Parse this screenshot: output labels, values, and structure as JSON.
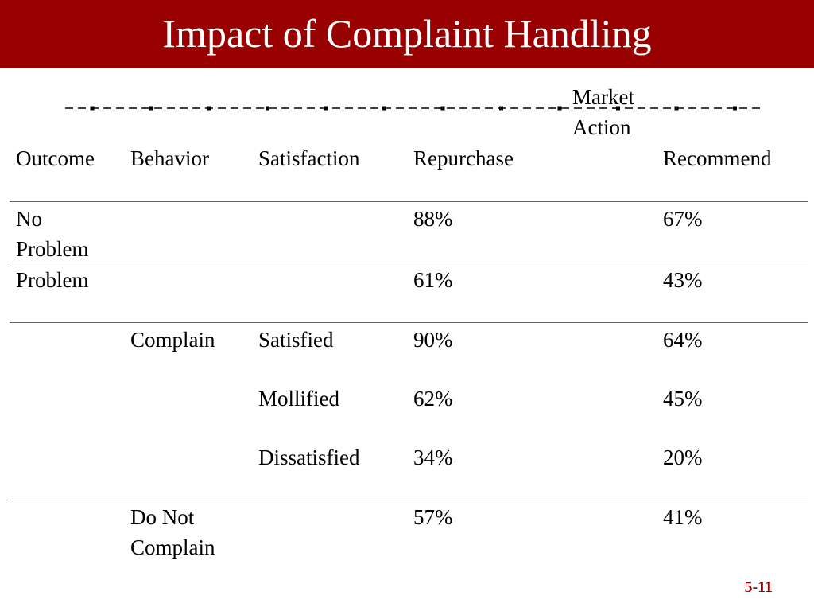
{
  "slide": {
    "title": "Impact of Complaint Handling",
    "slide_number": "5-11",
    "accent_color": "#990000"
  },
  "table": {
    "headers": {
      "outcome": "Outcome",
      "behavior": "Behavior",
      "satisfaction": "Satisfaction",
      "market_action_line1": "Market",
      "market_action_line2": "Action",
      "repurchase": "Repurchase",
      "recommend": "Recommend"
    },
    "rows": [
      {
        "outcome": [
          "No",
          "Problem"
        ],
        "behavior": [],
        "satisfaction": "",
        "repurchase": "88%",
        "recommend": "67%"
      },
      {
        "outcome": [
          "Problem"
        ],
        "behavior": [],
        "satisfaction": "",
        "repurchase": "61%",
        "recommend": "43%"
      },
      {
        "outcome": [],
        "behavior": [
          "Complain"
        ],
        "satisfaction": "Satisfied",
        "repurchase": "90%",
        "recommend": "64%"
      },
      {
        "outcome": [],
        "behavior": [],
        "satisfaction": "Mollified",
        "repurchase": "62%",
        "recommend": "45%"
      },
      {
        "outcome": [],
        "behavior": [],
        "satisfaction": "Dissatisfied",
        "repurchase": "34%",
        "recommend": "20%"
      },
      {
        "outcome": [],
        "behavior": [
          "Do Not",
          "Complain"
        ],
        "satisfaction": "",
        "repurchase": "57%",
        "recommend": "41%"
      }
    ]
  }
}
